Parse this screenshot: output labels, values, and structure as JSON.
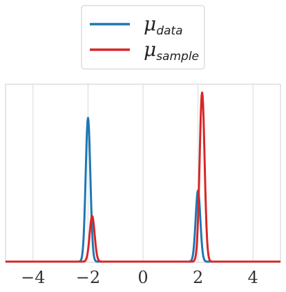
{
  "chart_data": {
    "type": "line",
    "title": "",
    "xlabel": "",
    "ylabel": "",
    "xlim": [
      -5,
      5
    ],
    "ylim": [
      0,
      1.0
    ],
    "grid": "vertical",
    "legend_position": "top-center",
    "xticks": [
      -4,
      -2,
      0,
      2,
      4
    ],
    "xtick_labels": [
      "−4",
      "−2",
      "0",
      "2",
      "4"
    ],
    "series": [
      {
        "name_symbol": "μ",
        "name_subscript": "data",
        "color": "#1f77b4",
        "peaks": [
          {
            "mean": -2.0,
            "height": 0.85,
            "sd": 0.085
          },
          {
            "mean": 2.0,
            "height": 0.42,
            "sd": 0.085
          }
        ]
      },
      {
        "name_symbol": "μ",
        "name_subscript": "sample",
        "color": "#d62728",
        "peaks": [
          {
            "mean": -1.85,
            "height": 0.27,
            "sd": 0.09
          },
          {
            "mean": 2.15,
            "height": 1.0,
            "sd": 0.09
          }
        ]
      }
    ]
  }
}
